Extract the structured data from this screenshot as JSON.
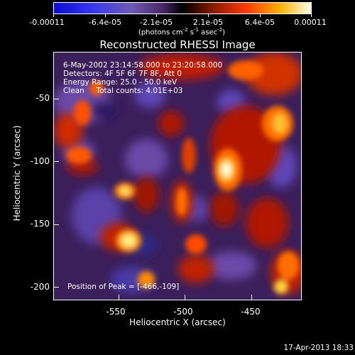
{
  "colorbar": {
    "tick_labels": [
      "-0.00011",
      "-6.4e-05",
      "-2.1e-05",
      "2.1e-05",
      "6.4e-05",
      "0.00011"
    ],
    "units_label": "(photons cm",
    "units_exp1": "-2",
    "units_mid": " s",
    "units_exp2": "-1",
    "units_end": " asec",
    "units_exp3": "-2",
    "units_close": ")"
  },
  "title": "Reconstructed RHESSI Image",
  "info": {
    "time_range": "6-May-2002 23:14:58.000 to 23:20:58.000",
    "detectors": "Detectors: 4F 5F 6F 7F 8F, Att 0",
    "energy": "Energy Range: 25.0 - 50.0 keV",
    "method": "Clean     Total counts: 4.01E+03"
  },
  "peak": "Position of Peak = [-466,-109]",
  "axes": {
    "xlabel": "Heliocentric X (arcsec)",
    "ylabel": "Heliocentric Y (arcsec)",
    "xticks": [
      "-550",
      "-500",
      "-450"
    ],
    "yticks": [
      "-50",
      "-100",
      "-150",
      "-200"
    ]
  },
  "timestamp": "17-Apr-2013 18:33"
}
